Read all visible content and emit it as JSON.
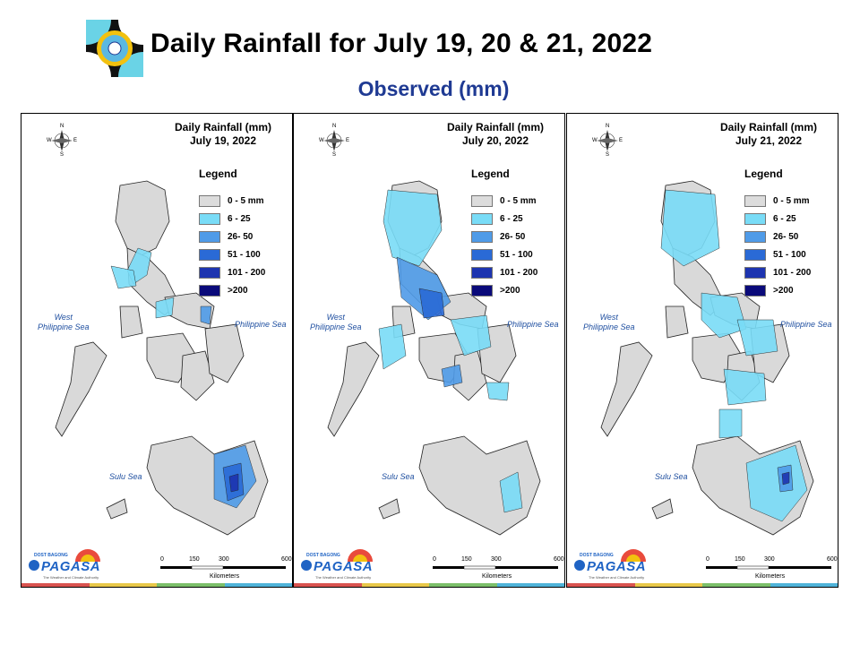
{
  "header": {
    "title": "Daily Rainfall for July 19, 20 & 21, 2022",
    "subtitle": "Observed (mm)"
  },
  "legend": {
    "title": "Legend",
    "items": [
      {
        "label": "0 - 5 mm",
        "color": "#dcdcdc"
      },
      {
        "label": "6 - 25",
        "color": "#79dcf7"
      },
      {
        "label": "26- 50",
        "color": "#4f9be8"
      },
      {
        "label": "51 - 100",
        "color": "#2a6ad6"
      },
      {
        "label": "101 - 200",
        "color": "#1d34b0"
      },
      {
        "label": ">200",
        "color": "#0a0a7a"
      }
    ]
  },
  "panels": [
    {
      "title_line1": "Daily Rainfall (mm)",
      "title_line2": "July 19, 2022"
    },
    {
      "title_line1": "Daily Rainfall (mm)",
      "title_line2": "July 20, 2022"
    },
    {
      "title_line1": "Daily Rainfall (mm)",
      "title_line2": "July 21, 2022"
    }
  ],
  "seas": {
    "west": "West\nPhilippine Sea",
    "east": "Philippine Sea",
    "sulu": "Sulu Sea"
  },
  "compass": {
    "n": "N",
    "s": "S",
    "e": "E",
    "w": "W"
  },
  "scale": {
    "ticks": [
      "0",
      "150",
      "300",
      "600"
    ],
    "unit": "Kilometers"
  },
  "branding": {
    "name": "PAGASA",
    "top": "DOST BAGONG",
    "tagline": "The Weather and Climate Authority"
  },
  "footer_colors": [
    "#d9534f",
    "#e8c84a",
    "#7cbf6a",
    "#4fb3d9"
  ]
}
